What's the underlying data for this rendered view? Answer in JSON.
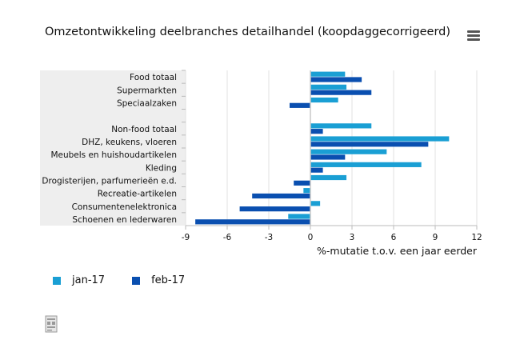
{
  "title": "Omzetontwikkeling deelbranches detailhandel (koopdaggecorrigeerd)",
  "menu_icon": "hamburger-menu-icon",
  "footer_icon": "document-icon",
  "colors": {
    "jan-17": "#1a9fd4",
    "feb-17": "#0a4fb0",
    "category_bg": "#eeeeee",
    "grid": "#e2e2e2",
    "axis": "#bbbbbb"
  },
  "legend": [
    {
      "label": "jan-17",
      "color": "#1a9fd4"
    },
    {
      "label": "feb-17",
      "color": "#0a4fb0"
    }
  ],
  "chart_data": {
    "type": "bar",
    "orientation": "horizontal",
    "title": "Omzetontwikkeling deelbranches detailhandel (koopdaggecorrigeerd)",
    "xlabel": "%-mutatie t.o.v. een jaar eerder",
    "ylabel": "",
    "xlim": [
      -9,
      12
    ],
    "xticks": [
      -9,
      -6,
      -3,
      0,
      3,
      6,
      9,
      12
    ],
    "grid": true,
    "legend_position": "bottom-left",
    "categories": [
      "Food totaal",
      "Supermarkten",
      "Speciaalzaken",
      "",
      "Non-food totaal",
      "DHZ, keukens, vloeren",
      "Meubels en huishoudartikelen",
      "Kleding",
      "Drogisterijen, parfumerieën e.d.",
      "Recreatie-artikelen",
      "Consumentenelektronica",
      "Schoenen en lederwaren"
    ],
    "series": [
      {
        "name": "jan-17",
        "values": [
          2.5,
          2.6,
          2.0,
          null,
          4.4,
          10.0,
          5.5,
          8.0,
          2.6,
          -0.5,
          0.7,
          -1.6
        ]
      },
      {
        "name": "feb-17",
        "values": [
          3.7,
          4.4,
          -1.5,
          null,
          0.9,
          8.5,
          2.5,
          0.9,
          -1.2,
          -4.2,
          -5.1,
          -8.3
        ]
      }
    ]
  }
}
